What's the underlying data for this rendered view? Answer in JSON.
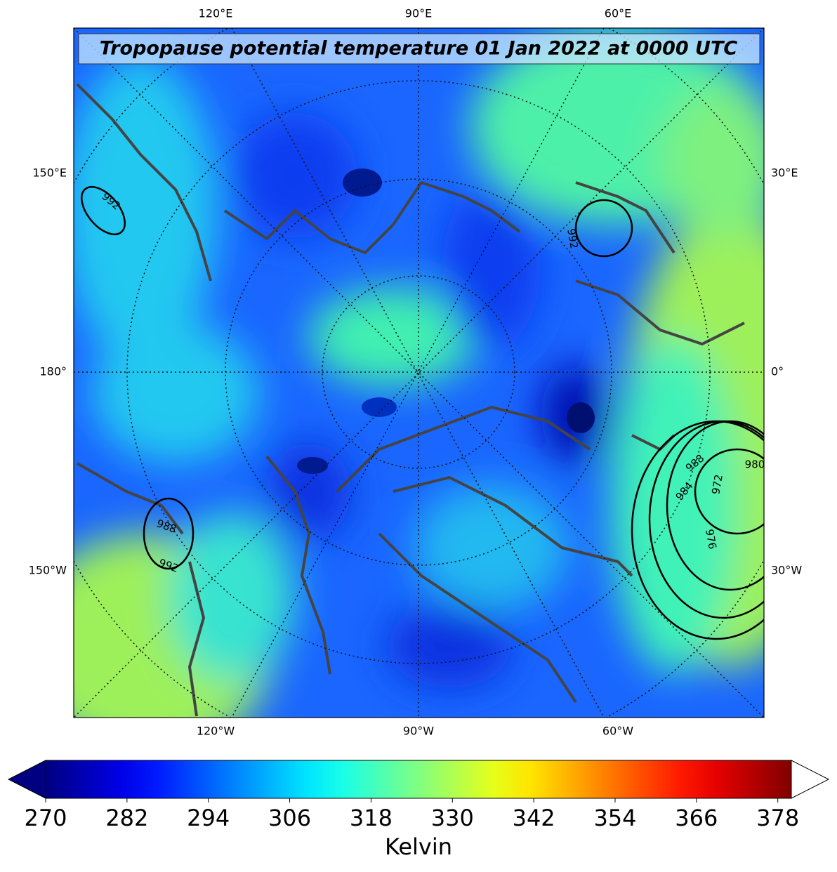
{
  "title": "Tropopause potential temperature 01 Jan 2022 at 0000 UTC",
  "map_labels": {
    "top": [
      "120°E",
      "90°E",
      "60°E"
    ],
    "bottom": [
      "120°W",
      "90°W",
      "60°W"
    ],
    "left": [
      "150°E",
      "180°",
      "150°W"
    ],
    "right": [
      "30°E",
      "0°",
      "30°W"
    ]
  },
  "contour_labels": [
    "992",
    "992",
    "988",
    "992",
    "988",
    "984",
    "980",
    "976",
    "972"
  ],
  "colorbar": {
    "label": "Kelvin",
    "colormap": "jet",
    "lim": [
      270,
      380
    ],
    "ticks": [
      270,
      282,
      294,
      306,
      318,
      330,
      342,
      354,
      366,
      378
    ],
    "extend": "both"
  }
}
